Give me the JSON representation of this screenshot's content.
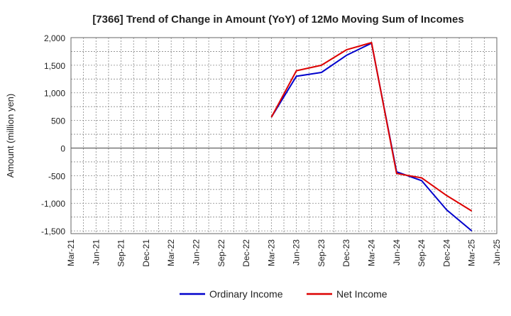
{
  "chart_data": {
    "type": "line",
    "title": "[7366]  Trend of Change in Amount (YoY) of 12Mo Moving Sum of Incomes",
    "xlabel": "",
    "ylabel": "Amount (million yen)",
    "x_ticks": [
      "Mar-21",
      "Jun-21",
      "Sep-21",
      "Dec-21",
      "Mar-22",
      "Jun-22",
      "Sep-22",
      "Dec-22",
      "Mar-23",
      "Jun-23",
      "Sep-23",
      "Dec-23",
      "Mar-24",
      "Jun-24",
      "Sep-24",
      "Dec-24",
      "Mar-25",
      "Jun-25"
    ],
    "y_ticks": [
      2000,
      1500,
      1000,
      500,
      0,
      -500,
      -1000,
      -1500
    ],
    "y_tick_labels": [
      "2,000",
      "1,500",
      "1,000",
      "500",
      "0",
      "-500",
      "-1,000",
      "-1,500"
    ],
    "ylim": [
      -1550,
      2000
    ],
    "grid": true,
    "legend_position": "bottom",
    "x": [
      "Mar-23",
      "Jun-23",
      "Sep-23",
      "Dec-23",
      "Mar-24",
      "Jun-24",
      "Sep-24",
      "Dec-24",
      "Mar-25"
    ],
    "series": [
      {
        "name": "Ordinary Income",
        "color": "#0000cc",
        "values": [
          560,
          1300,
          1370,
          1680,
          1900,
          -430,
          -590,
          -1120,
          -1500
        ]
      },
      {
        "name": "Net Income",
        "color": "#dd0000",
        "values": [
          560,
          1400,
          1500,
          1780,
          1910,
          -460,
          -540,
          -860,
          -1140
        ]
      }
    ]
  }
}
